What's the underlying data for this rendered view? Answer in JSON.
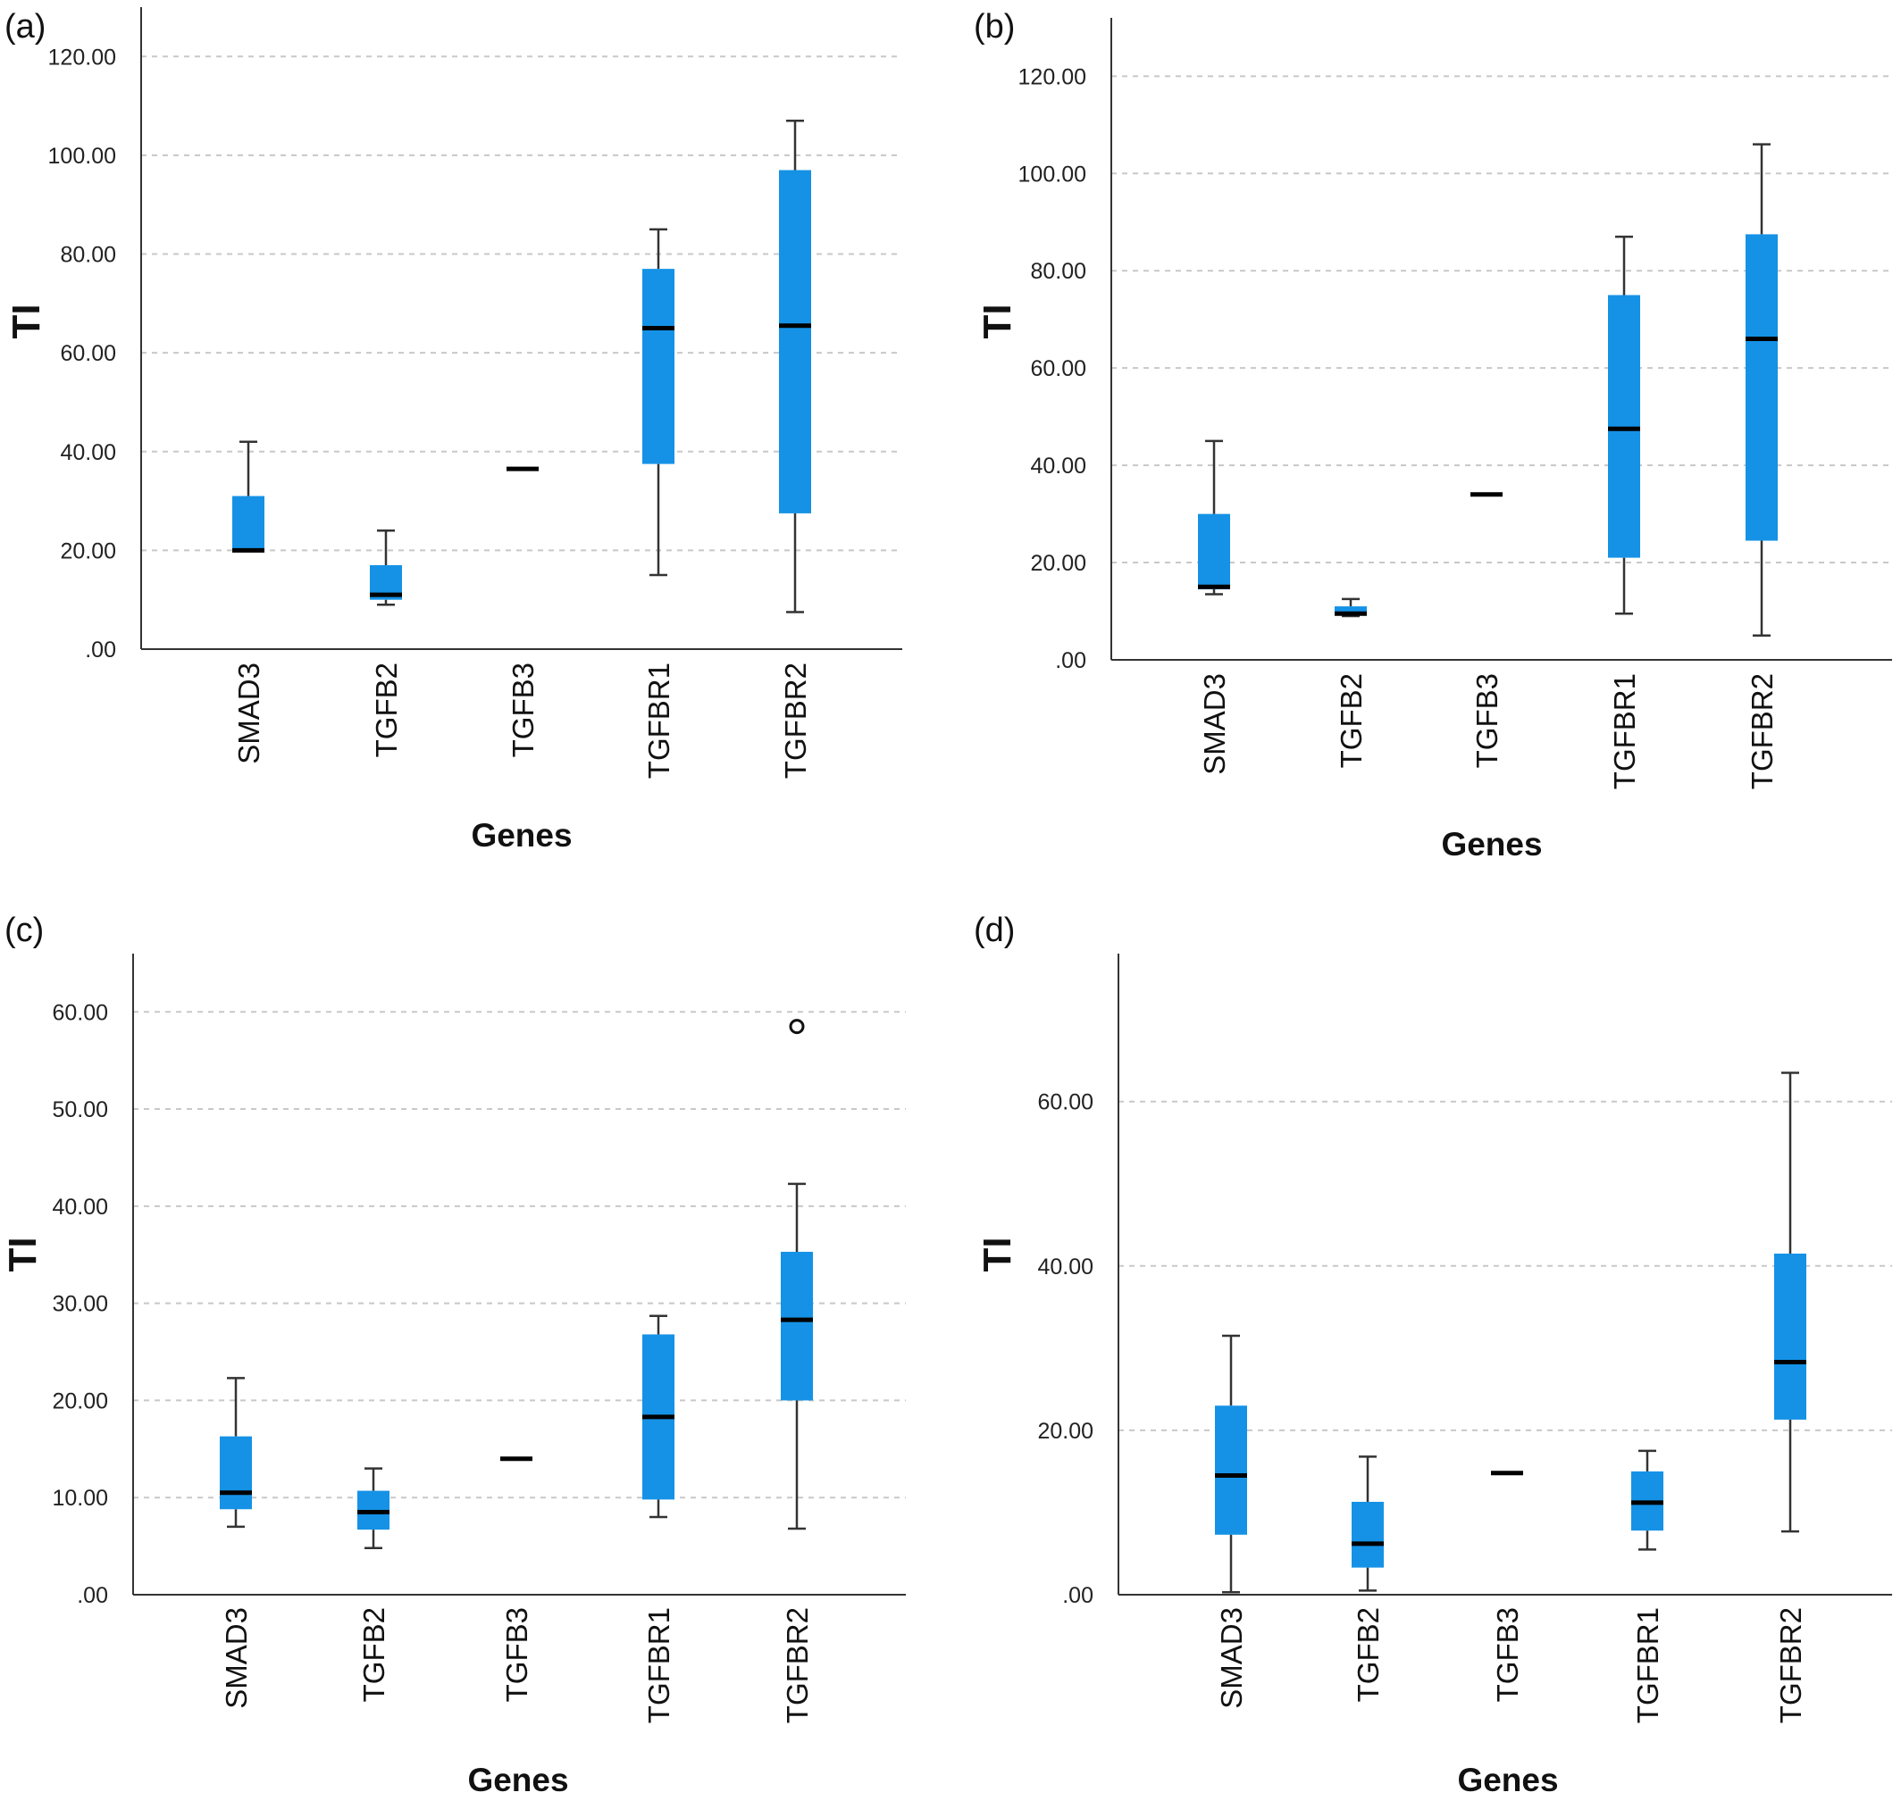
{
  "chart_data": [
    {
      "type": "box",
      "panel_label": "(a)",
      "xlabel": "Genes",
      "ylabel": "TI",
      "ylim": [
        0,
        130
      ],
      "yticks": [
        0,
        20,
        40,
        60,
        80,
        100,
        120
      ],
      "ytick_labels": [
        ".00",
        "20.00",
        "40.00",
        "60.00",
        "80.00",
        "100.00",
        "120.00"
      ],
      "grid": true,
      "color": "#1592e6",
      "categories": [
        "SMAD3",
        "TGFB2",
        "TGFB3",
        "TGFBR1",
        "TGFBR2"
      ],
      "boxes": [
        {
          "min": 20,
          "q1": 20,
          "median": 20,
          "q3": 31,
          "max": 42
        },
        {
          "min": 9,
          "q1": 10,
          "median": 11,
          "q3": 17,
          "max": 24
        },
        {
          "min": 36.5,
          "q1": 36.5,
          "median": 36.5,
          "q3": 36.5,
          "max": 36.5
        },
        {
          "min": 15,
          "q1": 37.5,
          "median": 65,
          "q3": 77,
          "max": 85
        },
        {
          "min": 7.5,
          "q1": 27.5,
          "median": 65.5,
          "q3": 97,
          "max": 107
        }
      ],
      "outliers": []
    },
    {
      "type": "box",
      "panel_label": "(b)",
      "xlabel": "Genes",
      "ylabel": "TI",
      "ylim": [
        0,
        132
      ],
      "yticks": [
        0,
        20,
        40,
        60,
        80,
        100,
        120
      ],
      "ytick_labels": [
        ".00",
        "20.00",
        "40.00",
        "60.00",
        "80.00",
        "100.00",
        "120.00"
      ],
      "grid": true,
      "color": "#1592e6",
      "categories": [
        "SMAD3",
        "TGFB2",
        "TGFB3",
        "TGFBR1",
        "TGFBR2"
      ],
      "boxes": [
        {
          "min": 13.5,
          "q1": 14.5,
          "median": 15,
          "q3": 30,
          "max": 45
        },
        {
          "min": 9,
          "q1": 9.5,
          "median": 9.5,
          "q3": 11,
          "max": 12.5
        },
        {
          "min": 34,
          "q1": 34,
          "median": 34,
          "q3": 34,
          "max": 34
        },
        {
          "min": 9.5,
          "q1": 21,
          "median": 47.5,
          "q3": 75,
          "max": 87
        },
        {
          "min": 5,
          "q1": 24.5,
          "median": 66,
          "q3": 87.5,
          "max": 106
        }
      ],
      "outliers": []
    },
    {
      "type": "box",
      "panel_label": "(c)",
      "xlabel": "Genes",
      "ylabel": "TI",
      "ylim": [
        0,
        66
      ],
      "yticks": [
        0,
        10,
        20,
        30,
        40,
        50,
        60
      ],
      "ytick_labels": [
        ".00",
        "10.00",
        "20.00",
        "30.00",
        "40.00",
        "50.00",
        "60.00"
      ],
      "grid": true,
      "color": "#1592e6",
      "categories": [
        "SMAD3",
        "TGFB2",
        "TGFB3",
        "TGFBR1",
        "TGFBR2"
      ],
      "boxes": [
        {
          "min": 7,
          "q1": 8.8,
          "median": 10.5,
          "q3": 16.3,
          "max": 22.3
        },
        {
          "min": 4.8,
          "q1": 6.7,
          "median": 8.5,
          "q3": 10.7,
          "max": 13
        },
        {
          "min": 14,
          "q1": 14,
          "median": 14,
          "q3": 14,
          "max": 14
        },
        {
          "min": 8,
          "q1": 9.8,
          "median": 18.3,
          "q3": 26.8,
          "max": 28.7
        },
        {
          "min": 6.8,
          "q1": 20,
          "median": 28.3,
          "q3": 35.3,
          "max": 42.3
        }
      ],
      "outliers": [
        {
          "category": "TGFBR2",
          "value": 58.5
        }
      ]
    },
    {
      "type": "box",
      "panel_label": "(d)",
      "xlabel": "Genes",
      "ylabel": "TI",
      "ylim": [
        0,
        78
      ],
      "yticks": [
        0,
        20,
        40,
        60
      ],
      "ytick_labels": [
        ".00",
        "20.00",
        "40.00",
        "60.00"
      ],
      "grid": true,
      "color": "#1592e6",
      "categories": [
        "SMAD3",
        "TGFB2",
        "TGFB3",
        "TGFBR1",
        "TGFBR2"
      ],
      "boxes": [
        {
          "min": 0.3,
          "q1": 7.3,
          "median": 14.5,
          "q3": 23,
          "max": 31.5
        },
        {
          "min": 0.5,
          "q1": 3.3,
          "median": 6.2,
          "q3": 11.3,
          "max": 16.8
        },
        {
          "min": 14.8,
          "q1": 14.8,
          "median": 14.8,
          "q3": 14.8,
          "max": 14.8
        },
        {
          "min": 5.5,
          "q1": 7.8,
          "median": 11.2,
          "q3": 15,
          "max": 17.5
        },
        {
          "min": 7.7,
          "q1": 21.3,
          "median": 28.3,
          "q3": 41.5,
          "max": 63.5
        }
      ],
      "outliers": []
    }
  ]
}
